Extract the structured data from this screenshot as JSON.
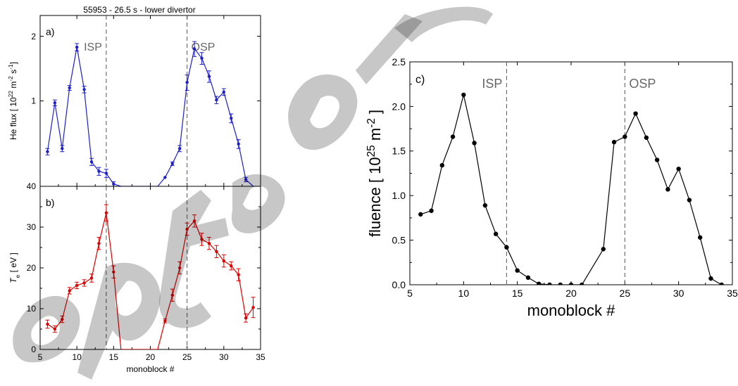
{
  "figure_title": "55953 - 26.5 s - lower divertor",
  "chart_data": [
    {
      "id": "a",
      "type": "line",
      "panel_label": "a)",
      "title": "55953 - 26.5 s - lower divertor",
      "ylabel": {
        "main": "He flux  [ 10",
        "sup1": "22",
        "mid1": " m",
        "sup2": "-2",
        "mid2": " s",
        "sup3": "-1",
        "end": "]"
      },
      "xlim": [
        5,
        35
      ],
      "ylim": [
        0.4,
        2.5
      ],
      "yscale": "log",
      "yticks": [
        1,
        2
      ],
      "ytick_labels": [
        "1",
        "2"
      ],
      "color": "#1f1fcc",
      "ref_lines": [
        {
          "x": 14,
          "label": "ISP"
        },
        {
          "x": 25,
          "label": "OSP"
        }
      ],
      "x": [
        6,
        7,
        8,
        9,
        10,
        11,
        12,
        13,
        14,
        15,
        16,
        17,
        18,
        19,
        20,
        21,
        22,
        23,
        24,
        25,
        26,
        27,
        28,
        29,
        30,
        31,
        32,
        33,
        34
      ],
      "y": [
        0.58,
        0.98,
        0.6,
        1.15,
        1.78,
        1.13,
        0.52,
        0.47,
        0.46,
        0.41,
        0.39,
        0.38,
        0.38,
        0.38,
        0.38,
        0.39,
        0.44,
        0.51,
        0.6,
        1.22,
        1.75,
        1.58,
        1.3,
        1.01,
        1.1,
        0.83,
        0.63,
        0.43,
        0.4
      ],
      "err": [
        0.02,
        0.03,
        0.02,
        0.03,
        0.07,
        0.04,
        0.02,
        0.02,
        0.02,
        0.01,
        0.0,
        0.0,
        0.0,
        0.0,
        0.0,
        0.0,
        0.0,
        0.01,
        0.02,
        0.1,
        0.14,
        0.1,
        0.08,
        0.04,
        0.04,
        0.04,
        0.03,
        0.01,
        0.0
      ]
    },
    {
      "id": "b",
      "type": "line",
      "panel_label": "b)",
      "ylabel": {
        "main": "T",
        "sub": "e",
        "end": "  [ eV ]"
      },
      "xlabel": "monoblock #",
      "xlim": [
        5,
        35
      ],
      "ylim": [
        0,
        40
      ],
      "yticks": [
        0,
        10,
        20,
        30,
        40
      ],
      "ytick_labels": [
        "0",
        "10",
        "20",
        "30",
        "40"
      ],
      "xticks": [
        5,
        10,
        15,
        20,
        25,
        30,
        35
      ],
      "xtick_labels": [
        "5",
        "10",
        "15",
        "20",
        "25",
        "30",
        "35"
      ],
      "color": "#dd0000",
      "ref_lines": [
        {
          "x": 14
        },
        {
          "x": 25
        }
      ],
      "x": [
        6,
        7,
        8,
        9,
        10,
        11,
        12,
        13,
        14,
        15,
        16,
        21,
        22,
        23,
        24,
        25,
        26,
        27,
        28,
        29,
        30,
        31,
        32,
        33,
        34
      ],
      "y": [
        6.2,
        5.0,
        7.4,
        14.4,
        15.7,
        16.3,
        17.5,
        26.0,
        33.5,
        19.0,
        0,
        0,
        7.0,
        13.3,
        20.0,
        29.5,
        31.5,
        27.0,
        26.0,
        24.0,
        21.7,
        20.5,
        18.3,
        7.7,
        10.3
      ],
      "err": [
        1.0,
        0.8,
        0.8,
        0.8,
        0.8,
        0.8,
        1.0,
        1.5,
        2.0,
        1.5,
        0,
        0,
        0.5,
        1.5,
        1.5,
        1.5,
        1.5,
        1.5,
        1.5,
        1.5,
        1.5,
        1.0,
        1.5,
        1.0,
        2.5
      ]
    },
    {
      "id": "c",
      "type": "line",
      "panel_label": "c)",
      "ylabel": {
        "main": "fluence  [ 10",
        "sup1": "25",
        "mid1": " m",
        "sup2": "-2",
        "end": " ]"
      },
      "xlabel": "monoblock #",
      "xlim": [
        5,
        35
      ],
      "ylim": [
        0,
        2.5
      ],
      "yticks": [
        0,
        0.5,
        1.0,
        1.5,
        2.0,
        2.5
      ],
      "ytick_labels": [
        "0.0",
        "0.5",
        "1.0",
        "1.5",
        "2.0",
        "2.5"
      ],
      "xticks": [
        5,
        10,
        15,
        20,
        25,
        30,
        35
      ],
      "xtick_labels": [
        "5",
        "10",
        "15",
        "20",
        "25",
        "30",
        "35"
      ],
      "color": "#000000",
      "ref_lines": [
        {
          "x": 14,
          "label": "ISP"
        },
        {
          "x": 25,
          "label": "OSP"
        }
      ],
      "x": [
        6,
        7,
        8,
        9,
        10,
        11,
        12,
        13,
        14,
        15,
        16,
        17,
        18,
        19,
        20,
        21,
        23,
        24,
        25,
        26,
        27,
        28,
        29,
        30,
        31,
        32,
        33,
        34
      ],
      "y": [
        0.79,
        0.83,
        1.34,
        1.66,
        2.13,
        1.59,
        0.89,
        0.57,
        0.42,
        0.16,
        0.08,
        0.01,
        0.0,
        0.0,
        0.0,
        0.0,
        0.4,
        1.6,
        1.66,
        1.92,
        1.65,
        1.4,
        1.07,
        1.3,
        0.95,
        0.53,
        0.07,
        0.0
      ]
    }
  ]
}
